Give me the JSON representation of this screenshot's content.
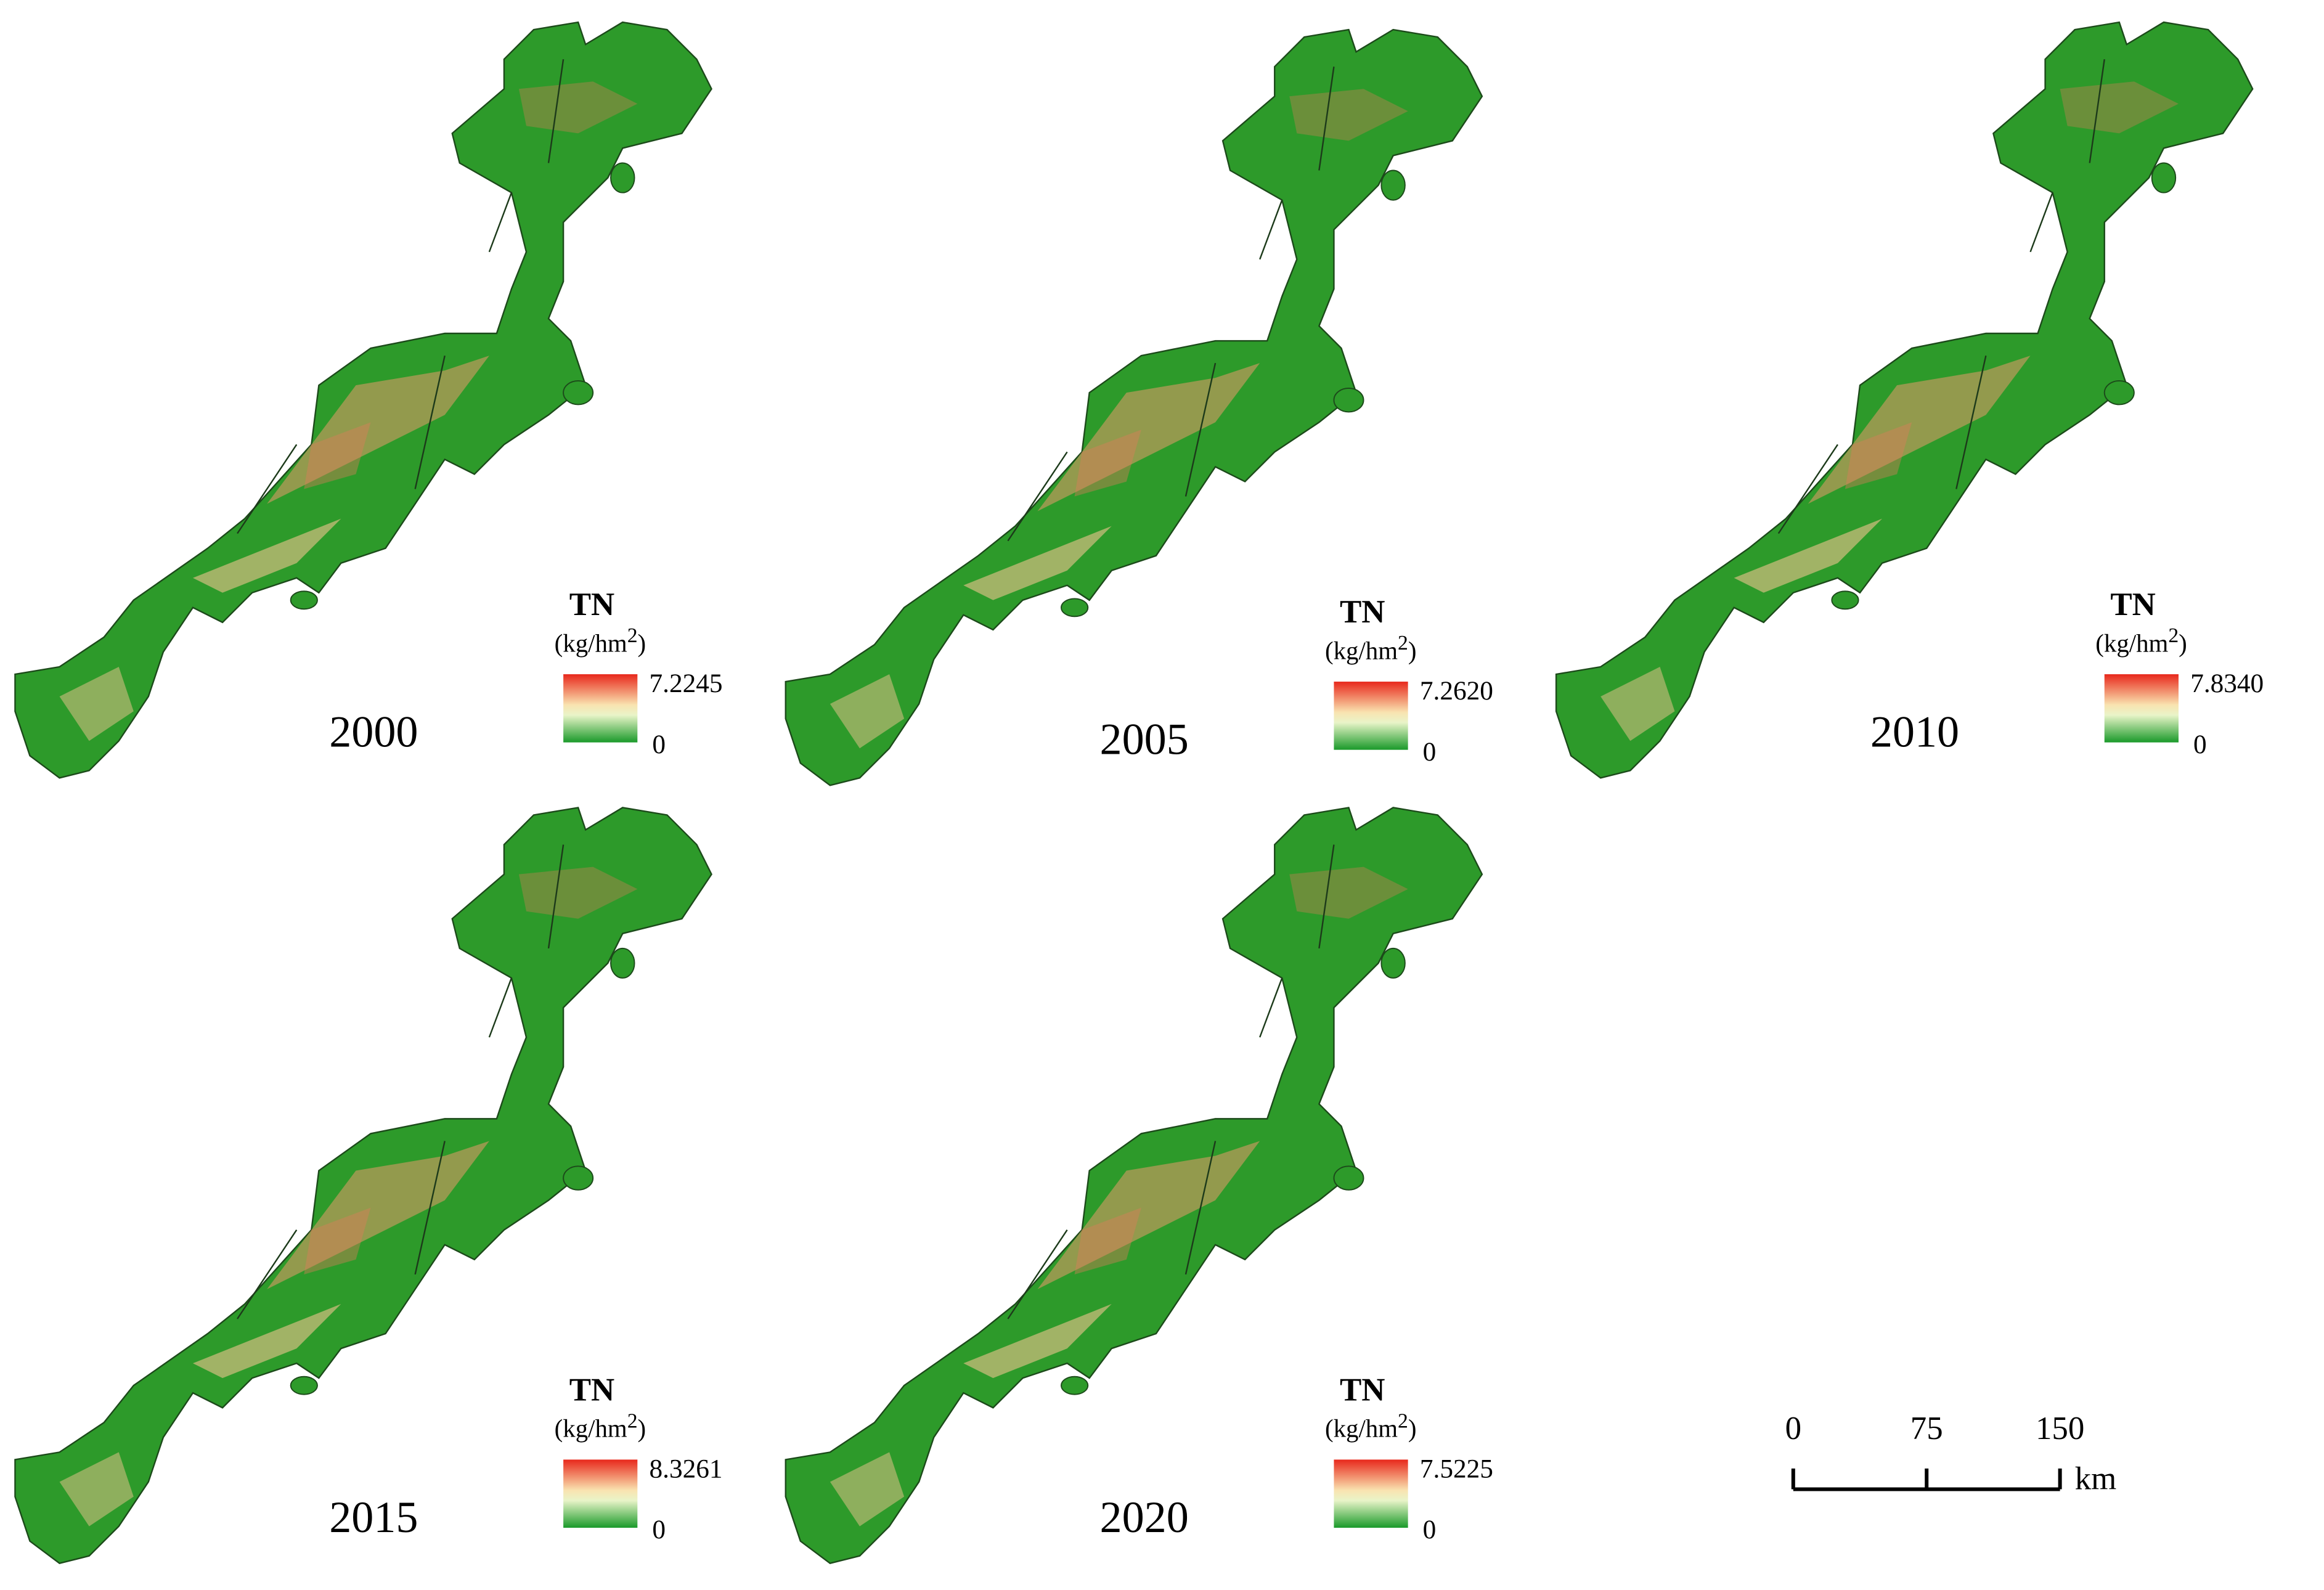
{
  "panels": [
    {
      "year": "2000",
      "legend": {
        "title": "TN",
        "unit": {
          "prefix": "(kg/hm",
          "exponent": "2",
          "suffix": ")"
        },
        "max": "7.2245",
        "min": "0"
      }
    },
    {
      "year": "2005",
      "legend": {
        "title": "TN",
        "unit": {
          "prefix": "(kg/hm",
          "exponent": "2",
          "suffix": ")"
        },
        "max": "7.2620",
        "min": "0"
      }
    },
    {
      "year": "2010",
      "legend": {
        "title": "TN",
        "unit": {
          "prefix": "(kg/hm",
          "exponent": "2",
          "suffix": ")"
        },
        "max": "7.8340",
        "min": "0"
      }
    },
    {
      "year": "2015",
      "legend": {
        "title": "TN",
        "unit": {
          "prefix": "(kg/hm",
          "exponent": "2",
          "suffix": ")"
        },
        "max": "8.3261",
        "min": "0"
      }
    },
    {
      "year": "2020",
      "legend": {
        "title": "TN",
        "unit": {
          "prefix": "(kg/hm",
          "exponent": "2",
          "suffix": ")"
        },
        "max": "7.5225",
        "min": "0"
      }
    }
  ],
  "scale_bar": {
    "ticks": [
      0,
      75,
      150
    ],
    "unit": "km"
  }
}
